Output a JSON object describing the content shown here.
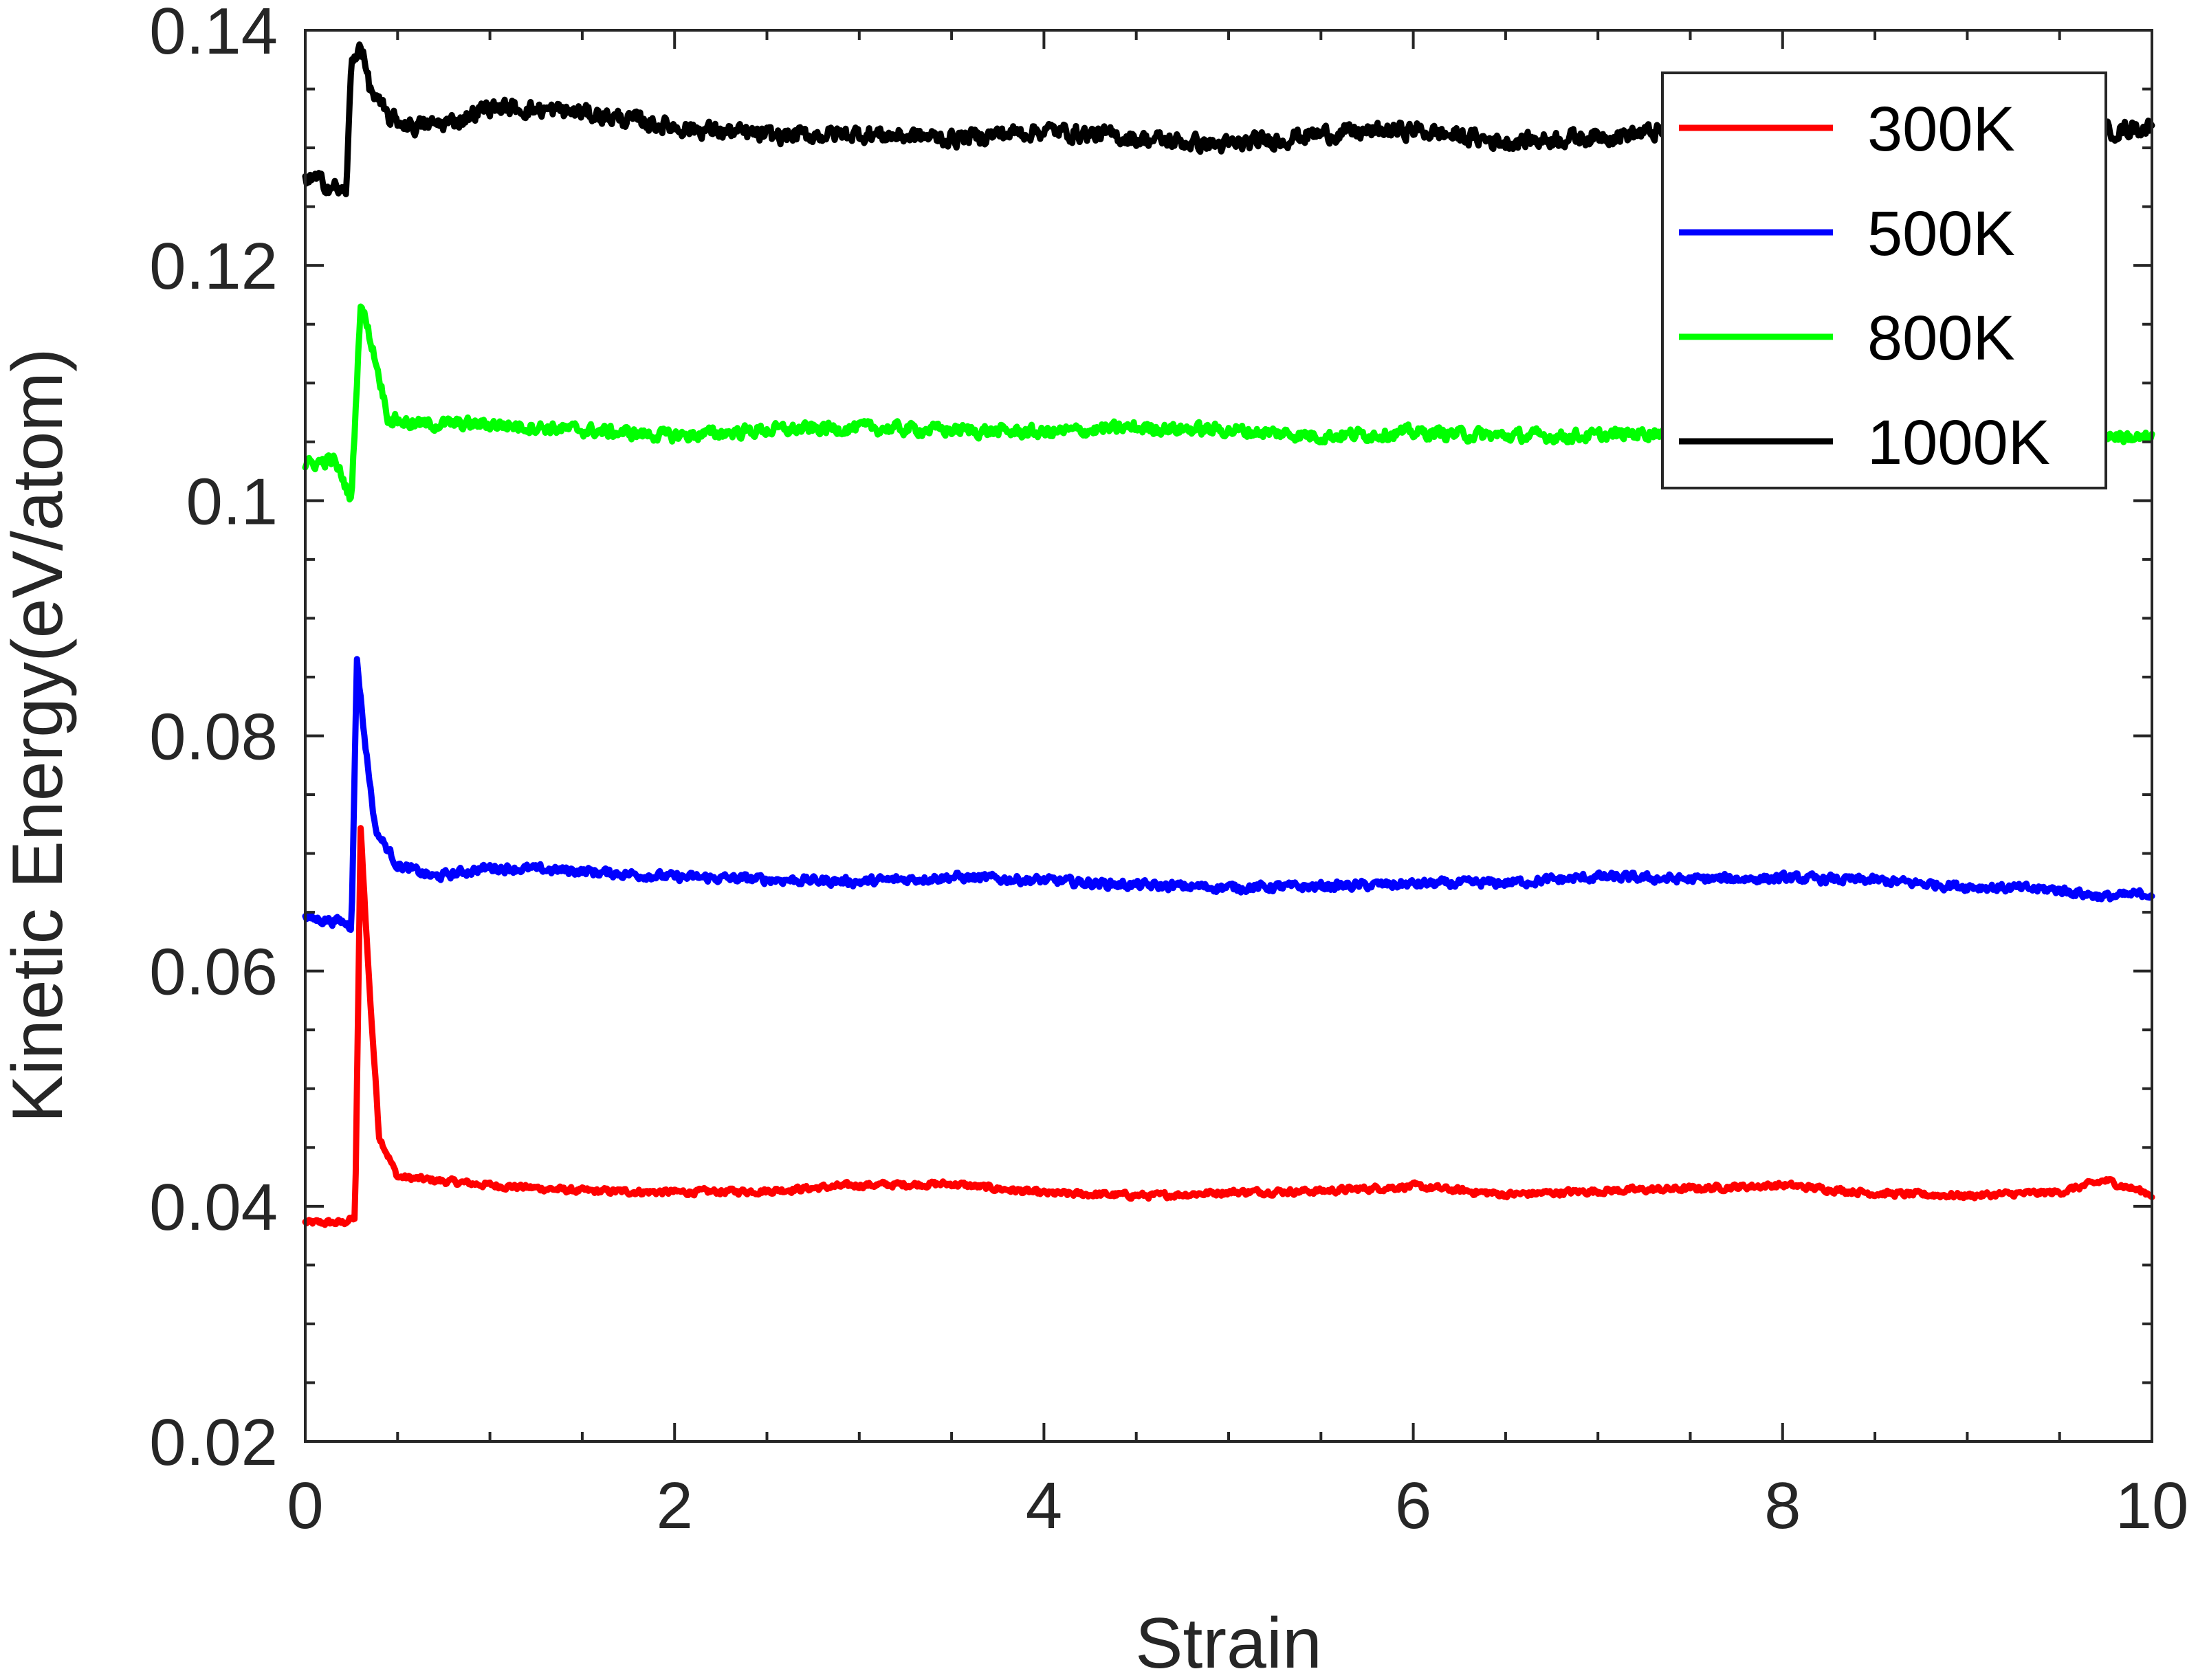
{
  "chart_data": {
    "type": "line",
    "xlabel": "Strain",
    "ylabel": "Kinetic Energy(eV/atom)",
    "xlim": [
      0,
      10
    ],
    "ylim": [
      0.02,
      0.14
    ],
    "xticks": [
      0,
      2,
      4,
      6,
      8,
      10
    ],
    "xtick_labels": [
      "0",
      "2",
      "4",
      "6",
      "8",
      "10"
    ],
    "yticks": [
      0.02,
      0.04,
      0.06,
      0.08,
      0.1,
      0.12,
      0.14
    ],
    "ytick_labels": [
      "0.02",
      "0.04",
      "0.06",
      "0.08",
      "0.1",
      "0.12",
      "0.14"
    ],
    "grid": false,
    "legend_position": "top-right",
    "series": [
      {
        "name": "300K",
        "color": "#ff0000",
        "x": [
          0,
          0.2,
          0.27,
          0.3,
          0.35,
          0.4,
          0.5,
          0.7,
          1.0,
          1.5,
          2.0,
          2.5,
          3.0,
          3.5,
          4.0,
          4.6,
          5.0,
          5.5,
          6.0,
          6.5,
          7.0,
          7.5,
          8.0,
          8.5,
          9.0,
          9.5,
          9.75,
          10.0
        ],
        "y": [
          0.0386,
          0.0386,
          0.039,
          0.072,
          0.058,
          0.046,
          0.0425,
          0.0422,
          0.0418,
          0.0413,
          0.0412,
          0.0413,
          0.0418,
          0.0419,
          0.0411,
          0.0409,
          0.0412,
          0.0413,
          0.0417,
          0.041,
          0.0413,
          0.0415,
          0.0418,
          0.0411,
          0.0409,
          0.0412,
          0.0422,
          0.041
        ]
      },
      {
        "name": "500K",
        "color": "#0000ff",
        "x": [
          0,
          0.2,
          0.25,
          0.28,
          0.32,
          0.38,
          0.5,
          0.7,
          1.0,
          1.5,
          2.0,
          2.5,
          3.0,
          3.5,
          4.0,
          4.5,
          5.0,
          5.5,
          6.0,
          6.5,
          7.0,
          7.5,
          8.0,
          8.5,
          9.0,
          9.5,
          9.75,
          10.0
        ],
        "y": [
          0.0645,
          0.0642,
          0.0638,
          0.0865,
          0.08,
          0.072,
          0.069,
          0.068,
          0.0688,
          0.0685,
          0.068,
          0.0678,
          0.0676,
          0.068,
          0.0677,
          0.0673,
          0.0671,
          0.0672,
          0.0674,
          0.0675,
          0.068,
          0.0678,
          0.0679,
          0.0677,
          0.0672,
          0.0669,
          0.0663,
          0.0666
        ]
      },
      {
        "name": "800K",
        "color": "#00ff00",
        "x": [
          0,
          0.15,
          0.2,
          0.25,
          0.3,
          0.38,
          0.45,
          0.6,
          1.0,
          1.5,
          2.0,
          2.5,
          3.0,
          3.5,
          4.0,
          4.5,
          5.0,
          5.5,
          6.0,
          6.5,
          7.0,
          7.5,
          8.0,
          8.5,
          9.0,
          9.5,
          10.0
        ],
        "y": [
          0.103,
          0.1035,
          0.102,
          0.1,
          0.117,
          0.112,
          0.107,
          0.1065,
          0.1065,
          0.106,
          0.1055,
          0.106,
          0.1062,
          0.106,
          0.1058,
          0.1062,
          0.106,
          0.1055,
          0.1058,
          0.1055,
          0.1055,
          0.106,
          0.106,
          0.1055,
          0.1058,
          0.106,
          0.1052
        ]
      },
      {
        "name": "1000K",
        "color": "#000000",
        "x": [
          0,
          0.1,
          0.18,
          0.22,
          0.25,
          0.3,
          0.35,
          0.45,
          0.6,
          0.8,
          1.0,
          1.5,
          2.0,
          2.5,
          3.0,
          3.5,
          4.0,
          4.5,
          5.0,
          5.5,
          6.0,
          6.5,
          7.0,
          7.5,
          8.0,
          8.5,
          9.0,
          9.5,
          10.0
        ],
        "y": [
          0.1275,
          0.127,
          0.1265,
          0.126,
          0.137,
          0.139,
          0.135,
          0.1325,
          0.1318,
          0.1322,
          0.1335,
          0.133,
          0.1318,
          0.131,
          0.1312,
          0.1308,
          0.1315,
          0.1308,
          0.1302,
          0.1312,
          0.1315,
          0.1305,
          0.131,
          0.1315,
          0.1315,
          0.1312,
          0.1315,
          0.131,
          0.1318
        ]
      }
    ]
  }
}
